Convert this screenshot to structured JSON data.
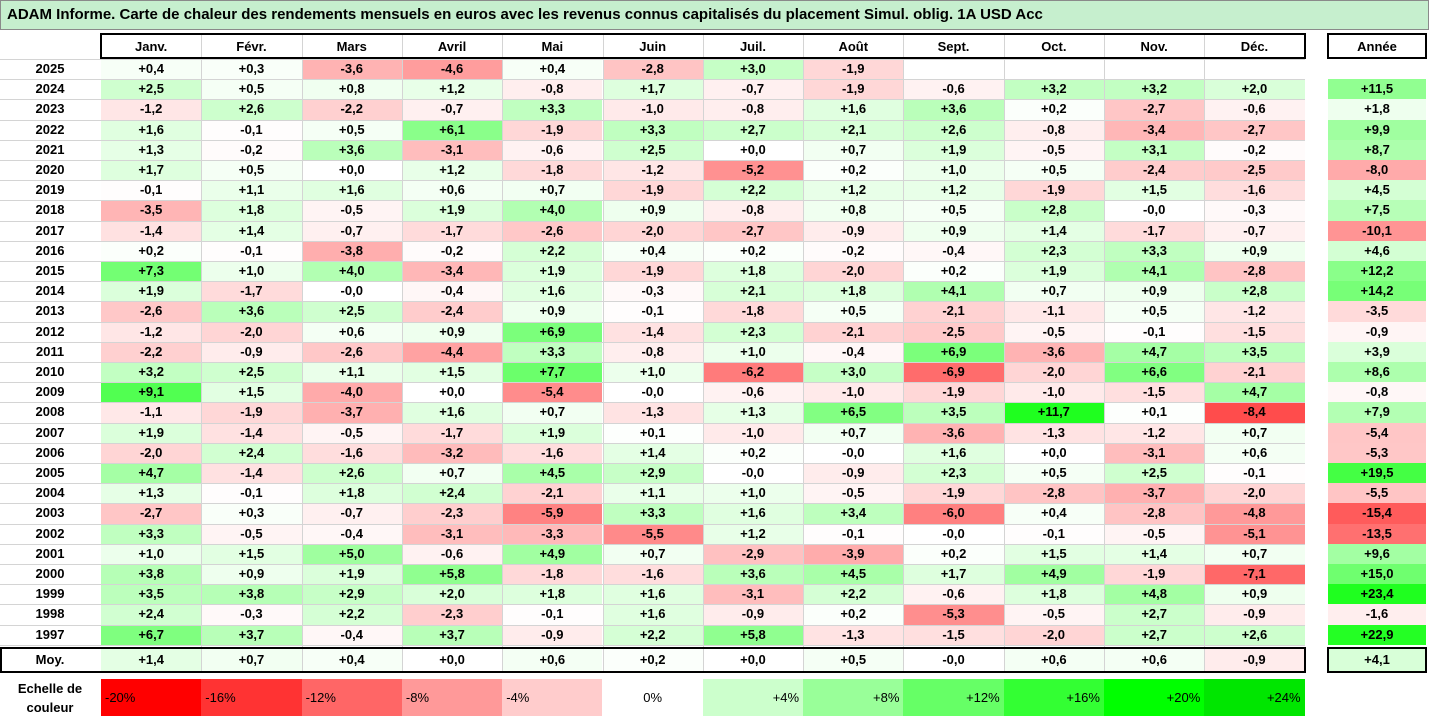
{
  "title": "ADAM Informe. Carte de chaleur des rendements mensuels en euros avec les revenus connus capitalisés du placement Simul. oblig. 1A USD Acc",
  "chart_data": {
    "type": "heatmap",
    "months": [
      "Janv.",
      "Févr.",
      "Mars",
      "Avril",
      "Mai",
      "Juin",
      "Juil.",
      "Août",
      "Sept.",
      "Oct.",
      "Nov.",
      "Déc."
    ],
    "year_header": "Année",
    "rows": [
      {
        "year": "2025",
        "values": [
          "+0,4",
          "+0,3",
          "-3,6",
          "-4,6",
          "+0,4",
          "-2,8",
          "+3,0",
          "-1,9",
          "",
          "",
          "",
          ""
        ],
        "annual": ""
      },
      {
        "year": "2024",
        "values": [
          "+2,5",
          "+0,5",
          "+0,8",
          "+1,2",
          "-0,8",
          "+1,7",
          "-0,7",
          "-1,9",
          "-0,6",
          "+3,2",
          "+3,2",
          "+2,0"
        ],
        "annual": "+11,5"
      },
      {
        "year": "2023",
        "values": [
          "-1,2",
          "+2,6",
          "-2,2",
          "-0,7",
          "+3,3",
          "-1,0",
          "-0,8",
          "+1,6",
          "+3,6",
          "+0,2",
          "-2,7",
          "-0,6"
        ],
        "annual": "+1,8"
      },
      {
        "year": "2022",
        "values": [
          "+1,6",
          "-0,1",
          "+0,5",
          "+6,1",
          "-1,9",
          "+3,3",
          "+2,7",
          "+2,1",
          "+2,6",
          "-0,8",
          "-3,4",
          "-2,7"
        ],
        "annual": "+9,9"
      },
      {
        "year": "2021",
        "values": [
          "+1,3",
          "-0,2",
          "+3,6",
          "-3,1",
          "-0,6",
          "+2,5",
          "+0,0",
          "+0,7",
          "+1,9",
          "-0,5",
          "+3,1",
          "-0,2"
        ],
        "annual": "+8,7"
      },
      {
        "year": "2020",
        "values": [
          "+1,7",
          "+0,5",
          "+0,0",
          "+1,2",
          "-1,8",
          "-1,2",
          "-5,2",
          "+0,2",
          "+1,0",
          "+0,5",
          "-2,4",
          "-2,5"
        ],
        "annual": "-8,0"
      },
      {
        "year": "2019",
        "values": [
          "-0,1",
          "+1,1",
          "+1,6",
          "+0,6",
          "+0,7",
          "-1,9",
          "+2,2",
          "+1,2",
          "+1,2",
          "-1,9",
          "+1,5",
          "-1,6"
        ],
        "annual": "+4,5"
      },
      {
        "year": "2018",
        "values": [
          "-3,5",
          "+1,8",
          "-0,5",
          "+1,9",
          "+4,0",
          "+0,9",
          "-0,8",
          "+0,8",
          "+0,5",
          "+2,8",
          "-0,0",
          "-0,3"
        ],
        "annual": "+7,5"
      },
      {
        "year": "2017",
        "values": [
          "-1,4",
          "+1,4",
          "-0,7",
          "-1,7",
          "-2,6",
          "-2,0",
          "-2,7",
          "-0,9",
          "+0,9",
          "+1,4",
          "-1,7",
          "-0,7"
        ],
        "annual": "-10,1"
      },
      {
        "year": "2016",
        "values": [
          "+0,2",
          "-0,1",
          "-3,8",
          "-0,2",
          "+2,2",
          "+0,4",
          "+0,2",
          "-0,2",
          "-0,4",
          "+2,3",
          "+3,3",
          "+0,9"
        ],
        "annual": "+4,6"
      },
      {
        "year": "2015",
        "values": [
          "+7,3",
          "+1,0",
          "+4,0",
          "-3,4",
          "+1,9",
          "-1,9",
          "+1,8",
          "-2,0",
          "+0,2",
          "+1,9",
          "+4,1",
          "-2,8"
        ],
        "annual": "+12,2"
      },
      {
        "year": "2014",
        "values": [
          "+1,9",
          "-1,7",
          "-0,0",
          "-0,4",
          "+1,6",
          "-0,3",
          "+2,1",
          "+1,8",
          "+4,1",
          "+0,7",
          "+0,9",
          "+2,8"
        ],
        "annual": "+14,2"
      },
      {
        "year": "2013",
        "values": [
          "-2,6",
          "+3,6",
          "+2,5",
          "-2,4",
          "+0,9",
          "-0,1",
          "-1,8",
          "+0,5",
          "-2,1",
          "-1,1",
          "+0,5",
          "-1,2"
        ],
        "annual": "-3,5"
      },
      {
        "year": "2012",
        "values": [
          "-1,2",
          "-2,0",
          "+0,6",
          "+0,9",
          "+6,9",
          "-1,4",
          "+2,3",
          "-2,1",
          "-2,5",
          "-0,5",
          "-0,1",
          "-1,5"
        ],
        "annual": "-0,9"
      },
      {
        "year": "2011",
        "values": [
          "-2,2",
          "-0,9",
          "-2,6",
          "-4,4",
          "+3,3",
          "-0,8",
          "+1,0",
          "-0,4",
          "+6,9",
          "-3,6",
          "+4,7",
          "+3,5"
        ],
        "annual": "+3,9"
      },
      {
        "year": "2010",
        "values": [
          "+3,2",
          "+2,5",
          "+1,1",
          "+1,5",
          "+7,7",
          "+1,0",
          "-6,2",
          "+3,0",
          "-6,9",
          "-2,0",
          "+6,6",
          "-2,1"
        ],
        "annual": "+8,6"
      },
      {
        "year": "2009",
        "values": [
          "+9,1",
          "+1,5",
          "-4,0",
          "+0,0",
          "-5,4",
          "-0,0",
          "-0,6",
          "-1,0",
          "-1,9",
          "-1,0",
          "-1,5",
          "+4,7"
        ],
        "annual": "-0,8"
      },
      {
        "year": "2008",
        "values": [
          "-1,1",
          "-1,9",
          "-3,7",
          "+1,6",
          "+0,7",
          "-1,3",
          "+1,3",
          "+6,5",
          "+3,5",
          "+11,7",
          "+0,1",
          "-8,4"
        ],
        "annual": "+7,9"
      },
      {
        "year": "2007",
        "values": [
          "+1,9",
          "-1,4",
          "-0,5",
          "-1,7",
          "+1,9",
          "+0,1",
          "-1,0",
          "+0,7",
          "-3,6",
          "-1,3",
          "-1,2",
          "+0,7"
        ],
        "annual": "-5,4"
      },
      {
        "year": "2006",
        "values": [
          "-2,0",
          "+2,4",
          "-1,6",
          "-3,2",
          "-1,6",
          "+1,4",
          "+0,2",
          "-0,0",
          "+1,6",
          "+0,0",
          "-3,1",
          "+0,6"
        ],
        "annual": "-5,3"
      },
      {
        "year": "2005",
        "values": [
          "+4,7",
          "-1,4",
          "+2,6",
          "+0,7",
          "+4,5",
          "+2,9",
          "-0,0",
          "-0,9",
          "+2,3",
          "+0,5",
          "+2,5",
          "-0,1"
        ],
        "annual": "+19,5"
      },
      {
        "year": "2004",
        "values": [
          "+1,3",
          "-0,1",
          "+1,8",
          "+2,4",
          "-2,1",
          "+1,1",
          "+1,0",
          "-0,5",
          "-1,9",
          "-2,8",
          "-3,7",
          "-2,0"
        ],
        "annual": "-5,5"
      },
      {
        "year": "2003",
        "values": [
          "-2,7",
          "+0,3",
          "-0,7",
          "-2,3",
          "-5,9",
          "+3,3",
          "+1,6",
          "+3,4",
          "-6,0",
          "+0,4",
          "-2,8",
          "-4,8"
        ],
        "annual": "-15,4"
      },
      {
        "year": "2002",
        "values": [
          "+3,3",
          "-0,5",
          "-0,4",
          "-3,1",
          "-3,3",
          "-5,5",
          "+1,2",
          "-0,1",
          "-0,0",
          "-0,1",
          "-0,5",
          "-5,1"
        ],
        "annual": "-13,5"
      },
      {
        "year": "2001",
        "values": [
          "+1,0",
          "+1,5",
          "+5,0",
          "-0,6",
          "+4,9",
          "+0,7",
          "-2,9",
          "-3,9",
          "+0,2",
          "+1,5",
          "+1,4",
          "+0,7"
        ],
        "annual": "+9,6"
      },
      {
        "year": "2000",
        "values": [
          "+3,8",
          "+0,9",
          "+1,9",
          "+5,8",
          "-1,8",
          "-1,6",
          "+3,6",
          "+4,5",
          "+1,7",
          "+4,9",
          "-1,9",
          "-7,1"
        ],
        "annual": "+15,0"
      },
      {
        "year": "1999",
        "values": [
          "+3,5",
          "+3,8",
          "+2,9",
          "+2,0",
          "+1,8",
          "+1,6",
          "-3,1",
          "+2,2",
          "-0,6",
          "+1,8",
          "+4,8",
          "+0,9"
        ],
        "annual": "+23,4"
      },
      {
        "year": "1998",
        "values": [
          "+2,4",
          "-0,3",
          "+2,2",
          "-2,3",
          "-0,1",
          "+1,6",
          "-0,9",
          "+0,2",
          "-5,3",
          "-0,5",
          "+2,7",
          "-0,9"
        ],
        "annual": "-1,6"
      },
      {
        "year": "1997",
        "values": [
          "+6,7",
          "+3,7",
          "-0,4",
          "+3,7",
          "-0,9",
          "+2,2",
          "+5,8",
          "-1,3",
          "-1,5",
          "-2,0",
          "+2,7",
          "+2,6"
        ],
        "annual": "+22,9"
      }
    ],
    "average": {
      "label": "Moy.",
      "values": [
        "+1,4",
        "+0,7",
        "+0,4",
        "+0,0",
        "+0,6",
        "+0,2",
        "+0,0",
        "+0,5",
        "-0,0",
        "+0,6",
        "+0,6",
        "-0,9"
      ],
      "annual": "+4,1"
    },
    "legend": {
      "label_line1": "Echelle de",
      "label_line2": "couleur",
      "items": [
        {
          "text": "-20%",
          "value": -20,
          "color": "#ff0000"
        },
        {
          "text": "-16%",
          "value": -16,
          "color": "#ff3333"
        },
        {
          "text": "-12%",
          "value": -12,
          "color": "#ff6666"
        },
        {
          "text": "-8%",
          "value": -8,
          "color": "#ff9999"
        },
        {
          "text": "-4%",
          "value": -4,
          "color": "#ffcccc"
        },
        {
          "text": "0%",
          "value": 0,
          "color": "#ffffff"
        },
        {
          "text": "+4%",
          "value": 4,
          "color": "#ccffcc"
        },
        {
          "text": "+8%",
          "value": 8,
          "color": "#99ff99"
        },
        {
          "text": "+12%",
          "value": 12,
          "color": "#66ff66"
        },
        {
          "text": "+16%",
          "value": 16,
          "color": "#33ff33"
        },
        {
          "text": "+20%",
          "value": 20,
          "color": "#00ff00"
        },
        {
          "text": "+24%",
          "value": 24,
          "color": "#00e600"
        }
      ]
    }
  }
}
